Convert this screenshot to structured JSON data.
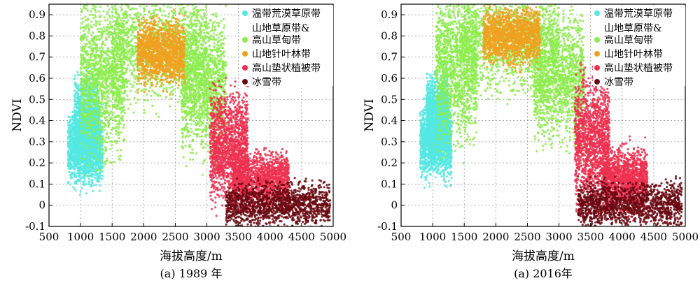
{
  "chart_data": [
    {
      "type": "scatter",
      "title": "(a) 1989 年",
      "xlabel": "海拔高度/m",
      "ylabel": "NDVI",
      "xlim": [
        500,
        5000
      ],
      "ylim": [
        -0.1,
        0.95
      ],
      "x_ticks": [
        500,
        1000,
        1500,
        2000,
        2500,
        3000,
        3500,
        4000,
        4500,
        5000
      ],
      "y_ticks": [
        -0.1,
        0,
        0.1,
        0.2,
        0.3,
        0.4,
        0.5,
        0.6,
        0.7,
        0.8,
        0.9
      ],
      "y_tick_labels": [
        "-0.1",
        "0",
        "0.1",
        "0.2",
        "0.3",
        "0.4",
        "0.5",
        "0.6",
        "0.7",
        "0.8",
        "0.9"
      ],
      "grid": true,
      "legend_position": "top-right",
      "series": [
        {
          "name": "温带荒漠草原带",
          "color": "#55e8e2",
          "clusters": [
            {
              "x": [
                800,
                1350
              ],
              "y_center": 0.27,
              "y_spread": 0.08
            },
            {
              "x": [
                900,
                1300
              ],
              "y_center": 0.38,
              "y_spread": 0.1
            }
          ]
        },
        {
          "name": "山地草原带&高山草甸带",
          "color": "#8cec4c",
          "clusters": [
            {
              "x": [
                1000,
                1700
              ],
              "y_center": 0.62,
              "y_spread": 0.18
            },
            {
              "x": [
                1500,
                3000
              ],
              "y_center": 0.76,
              "y_spread": 0.13
            },
            {
              "x": [
                2600,
                3300
              ],
              "y_center": 0.57,
              "y_spread": 0.15
            }
          ]
        },
        {
          "name": "山地针叶林带",
          "color": "#f0a020",
          "clusters": [
            {
              "x": [
                1900,
                2650
              ],
              "y_center": 0.72,
              "y_spread": 0.07
            }
          ]
        },
        {
          "name": "高山垫状植被带",
          "color": "#ee3050",
          "clusters": [
            {
              "x": [
                3050,
                3650
              ],
              "y_center": 0.28,
              "y_spread": 0.12
            },
            {
              "x": [
                3400,
                4300
              ],
              "y_center": 0.12,
              "y_spread": 0.06
            }
          ]
        },
        {
          "name": "冰雪带",
          "color": "#6a0810",
          "clusters": [
            {
              "x": [
                3300,
                4950
              ],
              "y_center": 0.0,
              "y_spread": 0.05
            }
          ]
        }
      ]
    },
    {
      "type": "scatter",
      "title": "(a) 2016年",
      "xlabel": "海拔高度/m",
      "ylabel": "NDVI",
      "xlim": [
        500,
        5000
      ],
      "ylim": [
        -0.1,
        0.95
      ],
      "x_ticks": [
        500,
        1000,
        1500,
        2000,
        2500,
        3000,
        3500,
        4000,
        4500,
        5000
      ],
      "y_ticks": [
        -0.1,
        0,
        0.1,
        0.2,
        0.3,
        0.4,
        0.5,
        0.6,
        0.7,
        0.8,
        0.9
      ],
      "y_tick_labels": [
        "-0.1",
        "0",
        "0.1",
        "0.2",
        "0.3",
        "0.4",
        "0.5",
        "0.6",
        "0.7",
        "0.8",
        "0.9"
      ],
      "grid": true,
      "legend_position": "top-right",
      "series": [
        {
          "name": "温带荒漠草原带",
          "color": "#55e8e2",
          "clusters": [
            {
              "x": [
                800,
                1300
              ],
              "y_center": 0.3,
              "y_spread": 0.08
            },
            {
              "x": [
                900,
                1250
              ],
              "y_center": 0.42,
              "y_spread": 0.09
            }
          ]
        },
        {
          "name": "山地草原带&高山草甸带",
          "color": "#8cec4c",
          "clusters": [
            {
              "x": [
                1050,
                1700
              ],
              "y_center": 0.66,
              "y_spread": 0.16
            },
            {
              "x": [
                1500,
                3000
              ],
              "y_center": 0.78,
              "y_spread": 0.11
            },
            {
              "x": [
                2600,
                3400
              ],
              "y_center": 0.6,
              "y_spread": 0.14
            }
          ]
        },
        {
          "name": "山地针叶林带",
          "color": "#f0a020",
          "clusters": [
            {
              "x": [
                1800,
                2700
              ],
              "y_center": 0.8,
              "y_spread": 0.06
            }
          ]
        },
        {
          "name": "高山垫状植被带",
          "color": "#ee3050",
          "clusters": [
            {
              "x": [
                3250,
                3800
              ],
              "y_center": 0.3,
              "y_spread": 0.14
            },
            {
              "x": [
                3700,
                4400
              ],
              "y_center": 0.12,
              "y_spread": 0.07
            }
          ]
        },
        {
          "name": "冰雪带",
          "color": "#6a0810",
          "clusters": [
            {
              "x": [
                3300,
                4950
              ],
              "y_center": 0.0,
              "y_spread": 0.05
            }
          ]
        }
      ]
    }
  ]
}
